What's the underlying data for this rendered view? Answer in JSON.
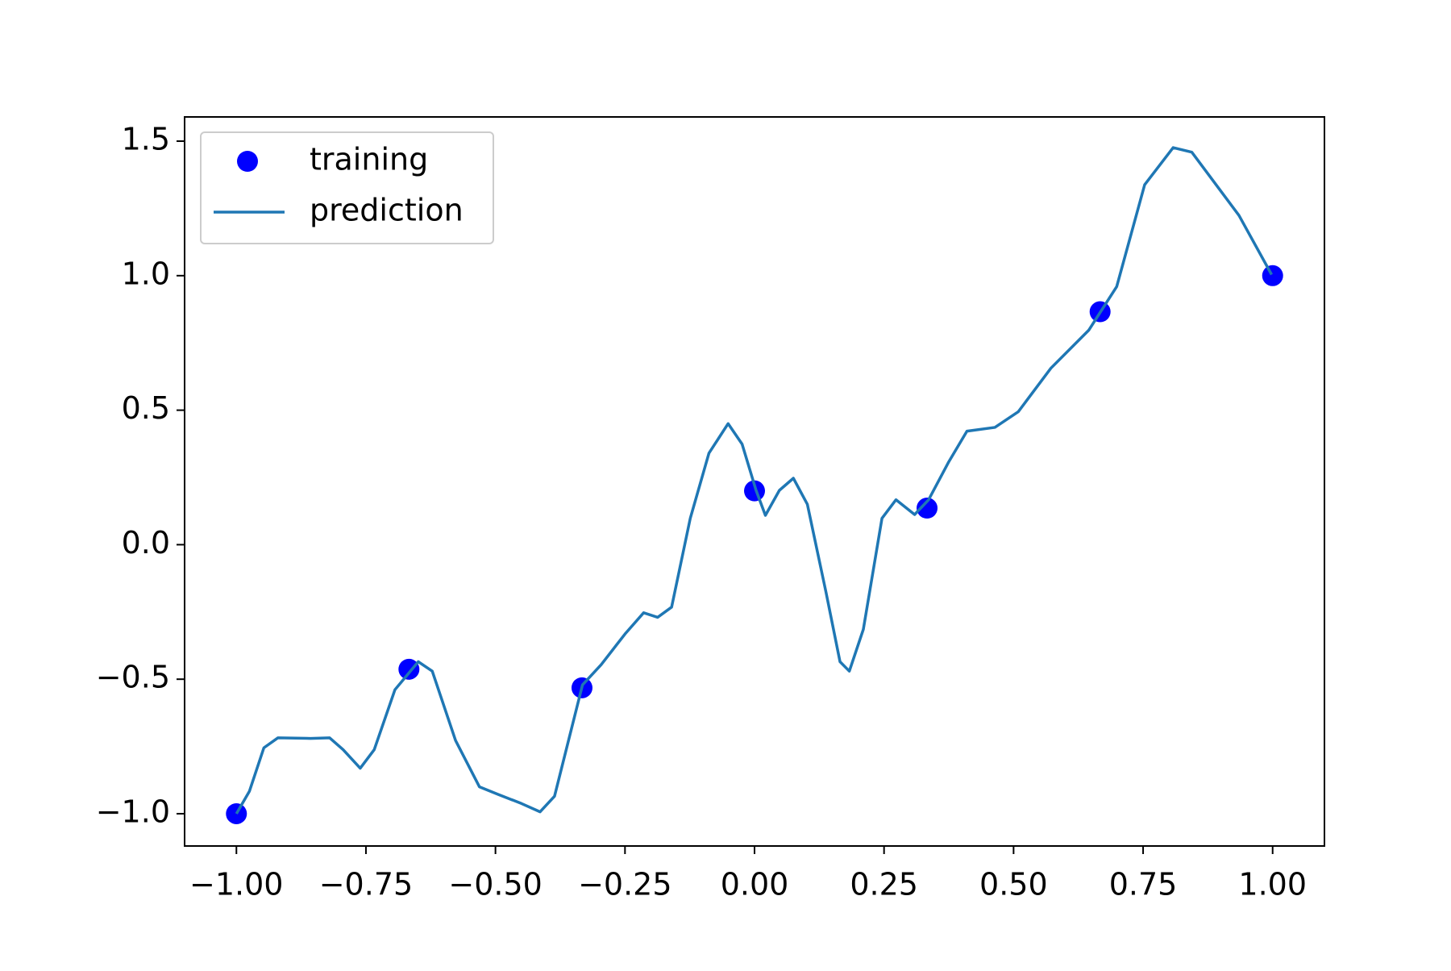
{
  "chart_data": {
    "type": "line",
    "legend": "upper left",
    "xlim": [
      -1.1,
      1.1
    ],
    "ylim": [
      -1.12,
      1.59
    ],
    "xticks": [
      {
        "value": -1,
        "label": "−1.00"
      },
      {
        "value": -0.75,
        "label": "−0.75"
      },
      {
        "value": -0.5,
        "label": "−0.50"
      },
      {
        "value": -0.25,
        "label": "−0.25"
      },
      {
        "value": 0,
        "label": "0.00"
      },
      {
        "value": 0.25,
        "label": "0.25"
      },
      {
        "value": 0.5,
        "label": "0.50"
      },
      {
        "value": 0.75,
        "label": "0.75"
      },
      {
        "value": 1,
        "label": "1.00"
      }
    ],
    "yticks": [
      {
        "value": -1,
        "label": "−1.0"
      },
      {
        "value": -0.5,
        "label": "−0.5"
      },
      {
        "value": 0,
        "label": "0.0"
      },
      0.5,
      {
        "value": 1,
        "label": "1.0"
      },
      1.5
    ],
    "series": [
      {
        "name": "training",
        "type": "scatter",
        "color": "#0000ff",
        "x": [
          -1,
          -0.667,
          -0.333,
          0,
          0.333,
          0.667,
          1
        ],
        "values": [
          -1,
          -0.463,
          -0.532,
          0.2,
          0.136,
          0.866,
          1
        ]
      },
      {
        "name": "prediction",
        "type": "line",
        "color": "#1f77b4",
        "x": [
          -1,
          -0.975,
          -0.947,
          -0.92,
          -0.857,
          -0.82,
          -0.794,
          -0.761,
          -0.734,
          -0.694,
          -0.649,
          -0.622,
          -0.577,
          -0.531,
          -0.495,
          -0.45,
          -0.414,
          -0.386,
          -0.359,
          -0.332,
          -0.296,
          -0.25,
          -0.214,
          -0.187,
          -0.16,
          -0.124,
          -0.088,
          -0.051,
          -0.024,
          0.003,
          0.021,
          0.048,
          0.075,
          0.102,
          0.138,
          0.165,
          0.183,
          0.21,
          0.246,
          0.273,
          0.309,
          0.336,
          0.374,
          0.41,
          0.464,
          0.509,
          0.572,
          0.645,
          0.699,
          0.753,
          0.808,
          0.844,
          0.935,
          0.998
        ],
        "values": [
          -1,
          -0.917,
          -0.755,
          -0.718,
          -0.72,
          -0.718,
          -0.762,
          -0.831,
          -0.762,
          -0.539,
          -0.435,
          -0.47,
          -0.728,
          -0.9,
          -0.928,
          -0.962,
          -0.993,
          -0.935,
          -0.728,
          -0.521,
          -0.446,
          -0.332,
          -0.253,
          -0.27,
          -0.232,
          0.098,
          0.34,
          0.45,
          0.374,
          0.202,
          0.109,
          0.202,
          0.247,
          0.15,
          -0.177,
          -0.435,
          -0.47,
          -0.315,
          0.098,
          0.167,
          0.112,
          0.167,
          0.305,
          0.422,
          0.436,
          0.494,
          0.656,
          0.797,
          0.959,
          1.338,
          1.476,
          1.459,
          1.224,
          1.004
        ]
      }
    ]
  }
}
